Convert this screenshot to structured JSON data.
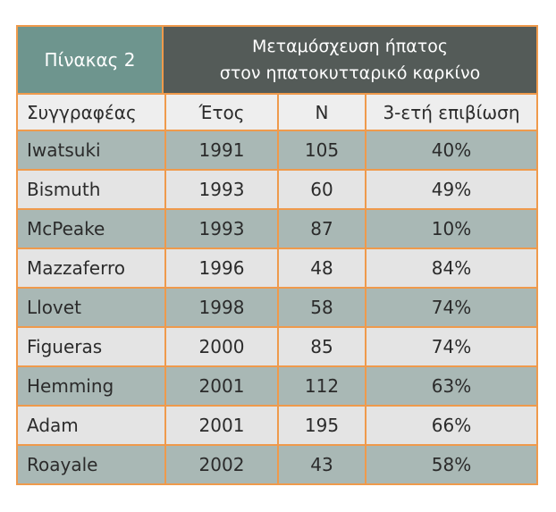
{
  "table": {
    "label": "Πίνακας 2",
    "title_line1": "Μεταμόσχευση ήπατος",
    "title_line2": "στον ηπατοκυτταρικό καρκίνο",
    "columns": [
      "Συγγραφέας",
      "Έτος",
      "N",
      "3-ετή επιβίωση"
    ],
    "rows": [
      [
        "Iwatsuki",
        "1991",
        "105",
        "40%"
      ],
      [
        "Bismuth",
        "1993",
        "60",
        "49%"
      ],
      [
        "McPeake",
        "1993",
        "87",
        "10%"
      ],
      [
        "Mazzaferro",
        "1996",
        "48",
        "84%"
      ],
      [
        "Llovet",
        "1998",
        "58",
        "74%"
      ],
      [
        "Figueras",
        "2000",
        "85",
        "74%"
      ],
      [
        "Hemming",
        "2001",
        "112",
        "63%"
      ],
      [
        "Adam",
        "2001",
        "195",
        "66%"
      ],
      [
        "Roayale",
        "2002",
        "43",
        "58%"
      ]
    ]
  },
  "colors": {
    "border": "#ef9a4c",
    "header_label_bg": "#6e958e",
    "header_title_bg": "#545b58",
    "row_odd_bg": "#a9b8b5",
    "row_even_bg": "#e4e4e4",
    "column_header_bg": "#eeeeee"
  }
}
